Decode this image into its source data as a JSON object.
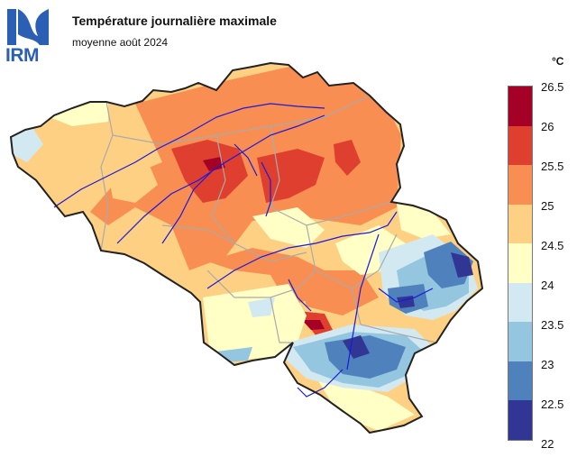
{
  "header": {
    "logo_text": "IRM",
    "title": "Température journalière maximale",
    "subtitle": "moyenne août 2024"
  },
  "legend": {
    "unit": "°C",
    "ticks": [
      "26.5",
      "26",
      "25.5",
      "25",
      "24.5",
      "24",
      "23.5",
      "23",
      "22.5",
      "22"
    ],
    "bins": [
      {
        "from": 26,
        "to": 26.5,
        "color": "#a50026"
      },
      {
        "from": 25.5,
        "to": 26,
        "color": "#de3f2e"
      },
      {
        "from": 25,
        "to": 25.5,
        "color": "#f98e52"
      },
      {
        "from": 24.5,
        "to": 25,
        "color": "#fed083"
      },
      {
        "from": 24,
        "to": 24.5,
        "color": "#ffffc6"
      },
      {
        "from": 23.5,
        "to": 24,
        "color": "#d3e9f2"
      },
      {
        "from": 23,
        "to": 23.5,
        "color": "#95c6e0"
      },
      {
        "from": 22.5,
        "to": 23,
        "color": "#4f82bd"
      },
      {
        "from": 22,
        "to": 22.5,
        "color": "#313695"
      }
    ]
  },
  "colors": {
    "logo": "#2b5fb4",
    "rivers": "#1a1adb",
    "borders_internal": "#aaaaaa",
    "border_country": "#222222"
  }
}
